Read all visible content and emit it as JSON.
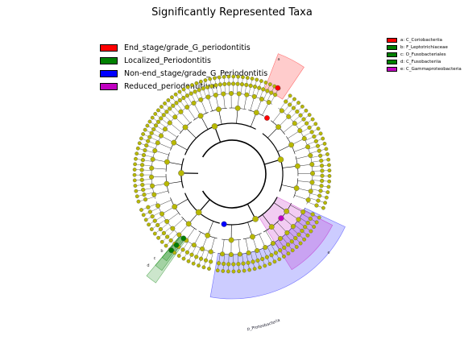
{
  "title": "Significantly Represented Taxa",
  "colors": {
    "End_stage": "#ff0000",
    "Localized": "#008000",
    "Non_end_stage": "#0000ff",
    "Reduced": "#c000c0",
    "node": "#b8b800"
  },
  "legend_main": [
    {
      "label": "End_stage/grade_G_periodontitis",
      "color": "#ff0000"
    },
    {
      "label": "Localized_Periodontitis",
      "color": "#008000"
    },
    {
      "label": "Non-end_stage/grade_G_Periodontitis",
      "color": "#0000ff"
    },
    {
      "label": "Reduced_periodontitium",
      "color": "#c000c0"
    }
  ],
  "legend_side": [
    {
      "label": "a: C_Coriobacteriia",
      "color": "#ff0000"
    },
    {
      "label": "b: F_Leptotrichiaceae",
      "color": "#008000"
    },
    {
      "label": "c: O_Fusobacteriales",
      "color": "#008000"
    },
    {
      "label": "d: C_Fusobacteriia",
      "color": "#008000"
    },
    {
      "label": "e: C_Gammaproteobacteria",
      "color": "#c000c0"
    }
  ],
  "clade_labels": {
    "a": "a",
    "b": "b",
    "c": "c",
    "d": "d",
    "e": "e",
    "proteobacteria": "p_Proteobacteria"
  }
}
